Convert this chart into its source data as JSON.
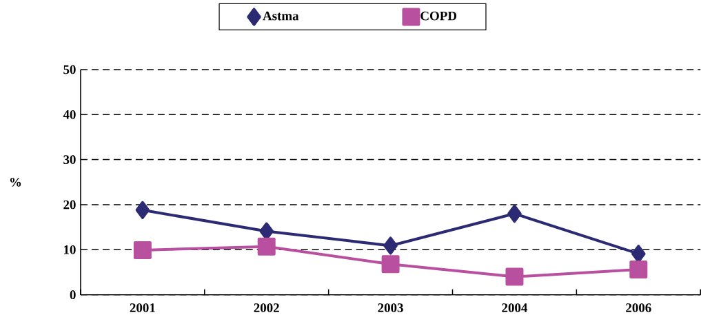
{
  "chart_data": {
    "type": "line",
    "ylabel": "%",
    "categories": [
      "2001",
      "2002",
      "2003",
      "2004",
      "2006"
    ],
    "series": [
      {
        "name": "Astma",
        "color": "#2b2a72",
        "marker": "diamond",
        "values": [
          18.8,
          14.1,
          10.9,
          18.0,
          9.1
        ]
      },
      {
        "name": "COPD",
        "color": "#b8509f",
        "marker": "square",
        "values": [
          9.9,
          10.7,
          6.8,
          4.0,
          5.6
        ]
      }
    ],
    "ylim": [
      0,
      50
    ],
    "yticks": [
      0,
      10,
      20,
      30,
      40,
      50
    ],
    "grid": "y",
    "legend": "top",
    "line_style": "solid"
  }
}
